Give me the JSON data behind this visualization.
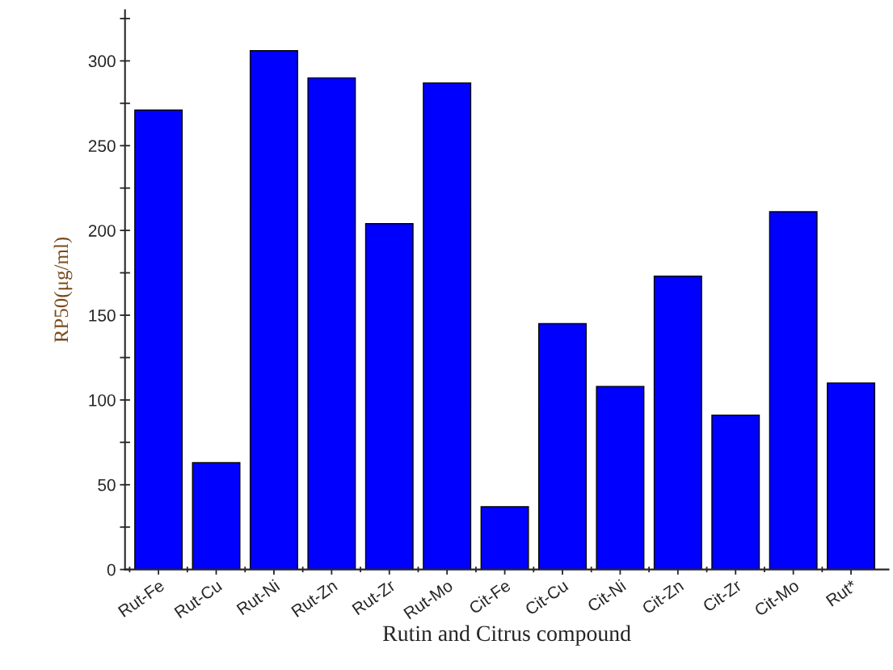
{
  "chart_data": {
    "type": "bar",
    "xlabel": "Rutin and Citrus compound",
    "ylabel": "RP50(μg/ml)",
    "categories": [
      "Rut-Fe",
      "Rut-Cu",
      "Rut-Ni",
      "Rut-Zn",
      "Rut-Zr",
      "Rut-Mo",
      "Cit-Fe",
      "Cit-Cu",
      "Cit-Ni",
      "Cit-Zn",
      "Cit-Zr",
      "Cit-Mo",
      "Rut*"
    ],
    "values": [
      271,
      63,
      306,
      290,
      204,
      287,
      37,
      145,
      108,
      173,
      91,
      211,
      110
    ],
    "color": "#0000ff",
    "ylim": [
      0,
      330
    ],
    "yticks": [
      0,
      {
        "value": 25,
        "label": null
      },
      50,
      {
        "value": 75,
        "label": null
      },
      100,
      {
        "value": 125,
        "label": null
      },
      150,
      {
        "value": 175,
        "label": null
      },
      200,
      {
        "value": 225,
        "label": null
      },
      250,
      {
        "value": 275,
        "label": null
      },
      300,
      {
        "value": 325,
        "label": null
      }
    ],
    "grid": false,
    "legend": false
  }
}
